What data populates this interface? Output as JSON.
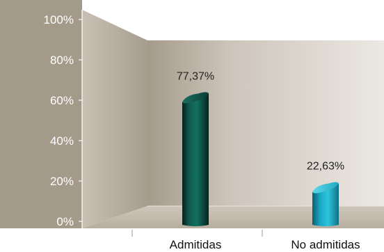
{
  "chart_data": {
    "type": "bar",
    "categories": [
      "Admitidas",
      "No admitidas"
    ],
    "values": [
      77.37,
      22.63
    ],
    "data_labels": [
      "77,37%",
      "22,63%"
    ],
    "ylim": [
      0,
      100
    ],
    "yticks": [
      {
        "value": 0,
        "label": "0%"
      },
      {
        "value": 20,
        "label": "20%"
      },
      {
        "value": 40,
        "label": "40%"
      },
      {
        "value": 60,
        "label": "60%"
      },
      {
        "value": 80,
        "label": "80%"
      },
      {
        "value": 100,
        "label": "100%"
      }
    ],
    "style": "3d-cylinder",
    "legend": "none",
    "grid": false,
    "colors": {
      "panel": "#a49a8a",
      "wall_light": "#e3ddd6",
      "wall_dark": "#a59b8b",
      "floor": "#c2b9ab",
      "series": [
        "#0e5a4e",
        "#18b7d0"
      ]
    }
  }
}
